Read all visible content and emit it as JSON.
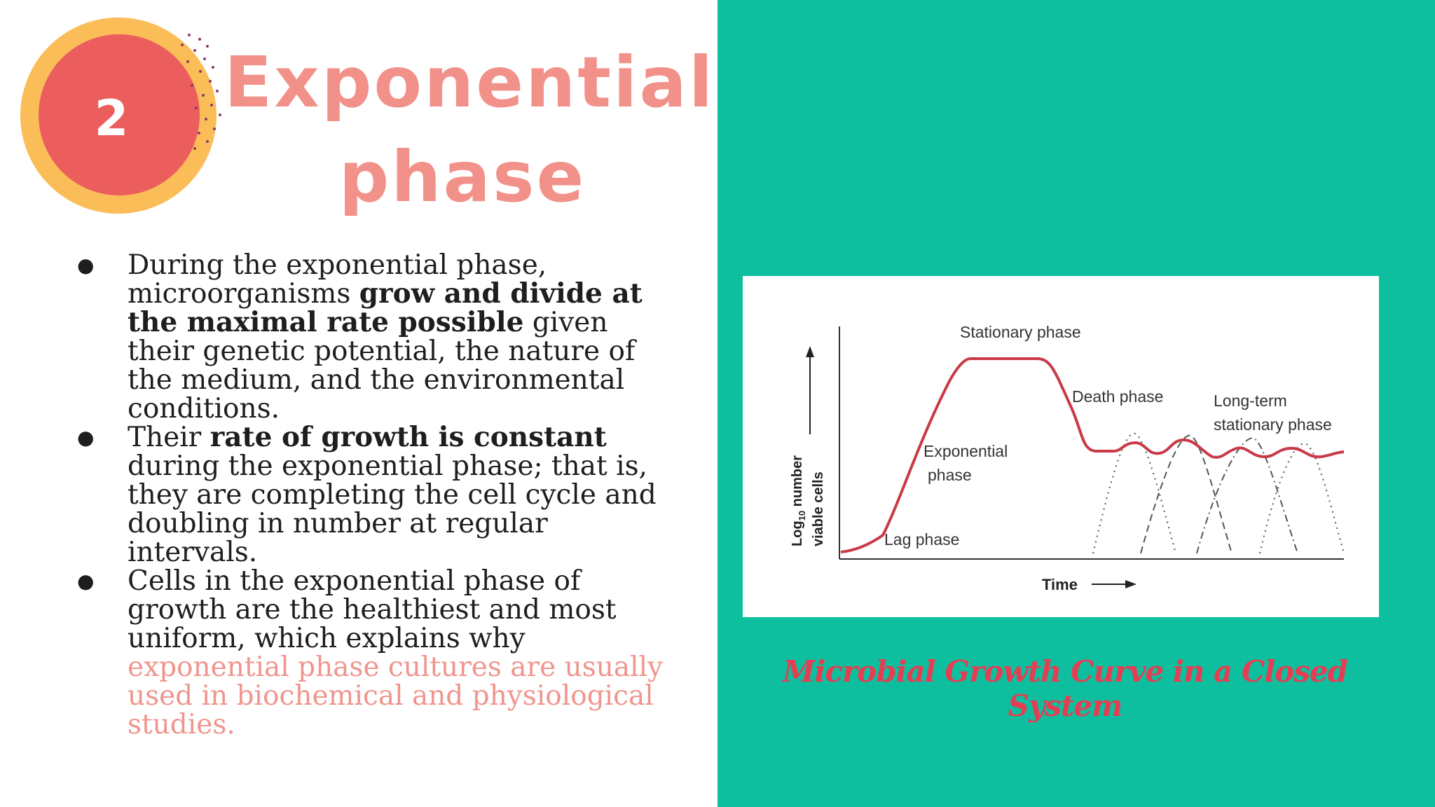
{
  "slide": {
    "number": "2",
    "title_line1": "Exponential",
    "title_line2": "phase",
    "bullet1": {
      "t1": "During the exponential phase, microorganisms ",
      "b1": "grow and divide at the maximal rate possible",
      "t2": " given their genetic potential, the nature of the medium, and the environmental conditions."
    },
    "bullet2": {
      "t1": "Their ",
      "b1": "rate of growth is constant",
      "t2": " during the exponential phase; that is, they are completing the cell cycle and doubling in number at regular intervals."
    },
    "bullet3": {
      "t1": "Cells in the exponential phase of growth are the healthiest and most uniform, which explains why ",
      "pink": "exponential phase cultures are usually used in biochemical and physiological studies."
    }
  },
  "figure": {
    "caption": "Microbial Growth Curve in a Closed System",
    "labels": {
      "stationary": "Stationary phase",
      "death": "Death phase",
      "longterm1": "Long-term",
      "longterm2": "stationary phase",
      "exp1": "Exponential",
      "exp2": "phase",
      "lag": "Lag phase",
      "time": "Time",
      "ylabel1": "Log",
      "ylabel_sub": "10",
      "ylabel2": " number",
      "ylabel3": "viable cells"
    }
  },
  "colors": {
    "accent_pink": "#f2918a",
    "badge_red": "#ec5d5d",
    "badge_yellow": "#fbbd58",
    "panel_teal": "#0ebf9f",
    "curve_red": "#c93a48",
    "caption_red": "#e43e52"
  }
}
